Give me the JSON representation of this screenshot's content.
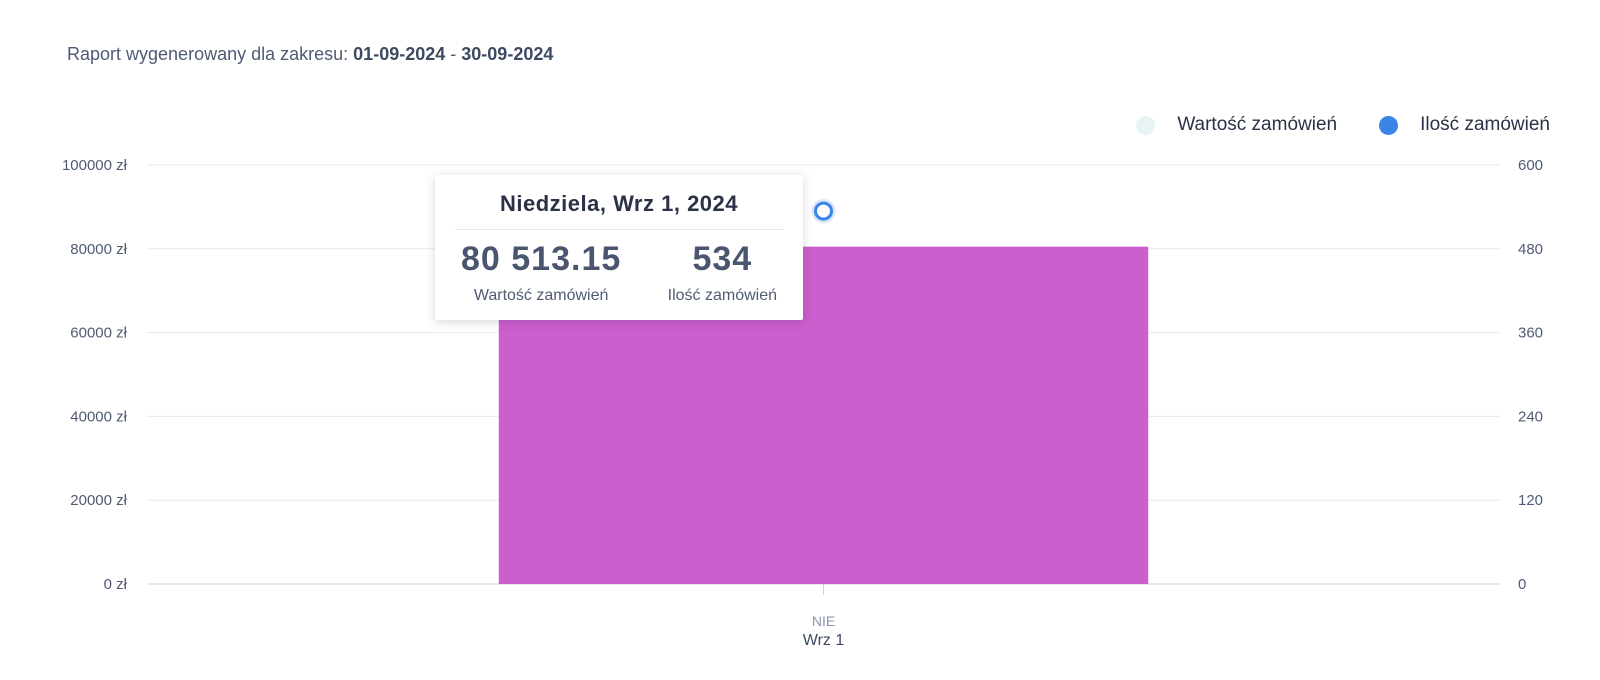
{
  "report": {
    "prefix": "Raport wygenerowany dla zakresu:",
    "start": "01-09-2024",
    "separator": "-",
    "end": "30-09-2024"
  },
  "legend": {
    "value_label": "Wartość zamówień",
    "value_color": "#e8f3f5",
    "count_label": "Ilość zamówień",
    "count_color": "#3b84e8"
  },
  "tooltip": {
    "title": "Niedziela, Wrz 1, 2024",
    "value": "80 513.15",
    "value_label": "Wartość zamówień",
    "count": "534",
    "count_label": "Ilość zamówień"
  },
  "chart_data": {
    "type": "bar",
    "categories": [
      "Wrz 1"
    ],
    "category_day": [
      "NIE"
    ],
    "series": [
      {
        "name": "Wartość zamówień",
        "axis": "left",
        "type": "bar",
        "color": "#cc5ecd",
        "values": [
          80513.15
        ]
      },
      {
        "name": "Ilość zamówień",
        "axis": "right",
        "type": "line",
        "color": "#3b84e8",
        "values": [
          534
        ]
      }
    ],
    "y_left": {
      "ticks": [
        "0 zł",
        "20000 zł",
        "40000 zł",
        "60000 zł",
        "80000 zł",
        "100000 zł"
      ],
      "lim": [
        0,
        100000
      ]
    },
    "y_right": {
      "ticks": [
        "0",
        "120",
        "240",
        "360",
        "480",
        "600"
      ],
      "lim": [
        0,
        600
      ]
    },
    "grid": true,
    "legend": "top-right"
  }
}
